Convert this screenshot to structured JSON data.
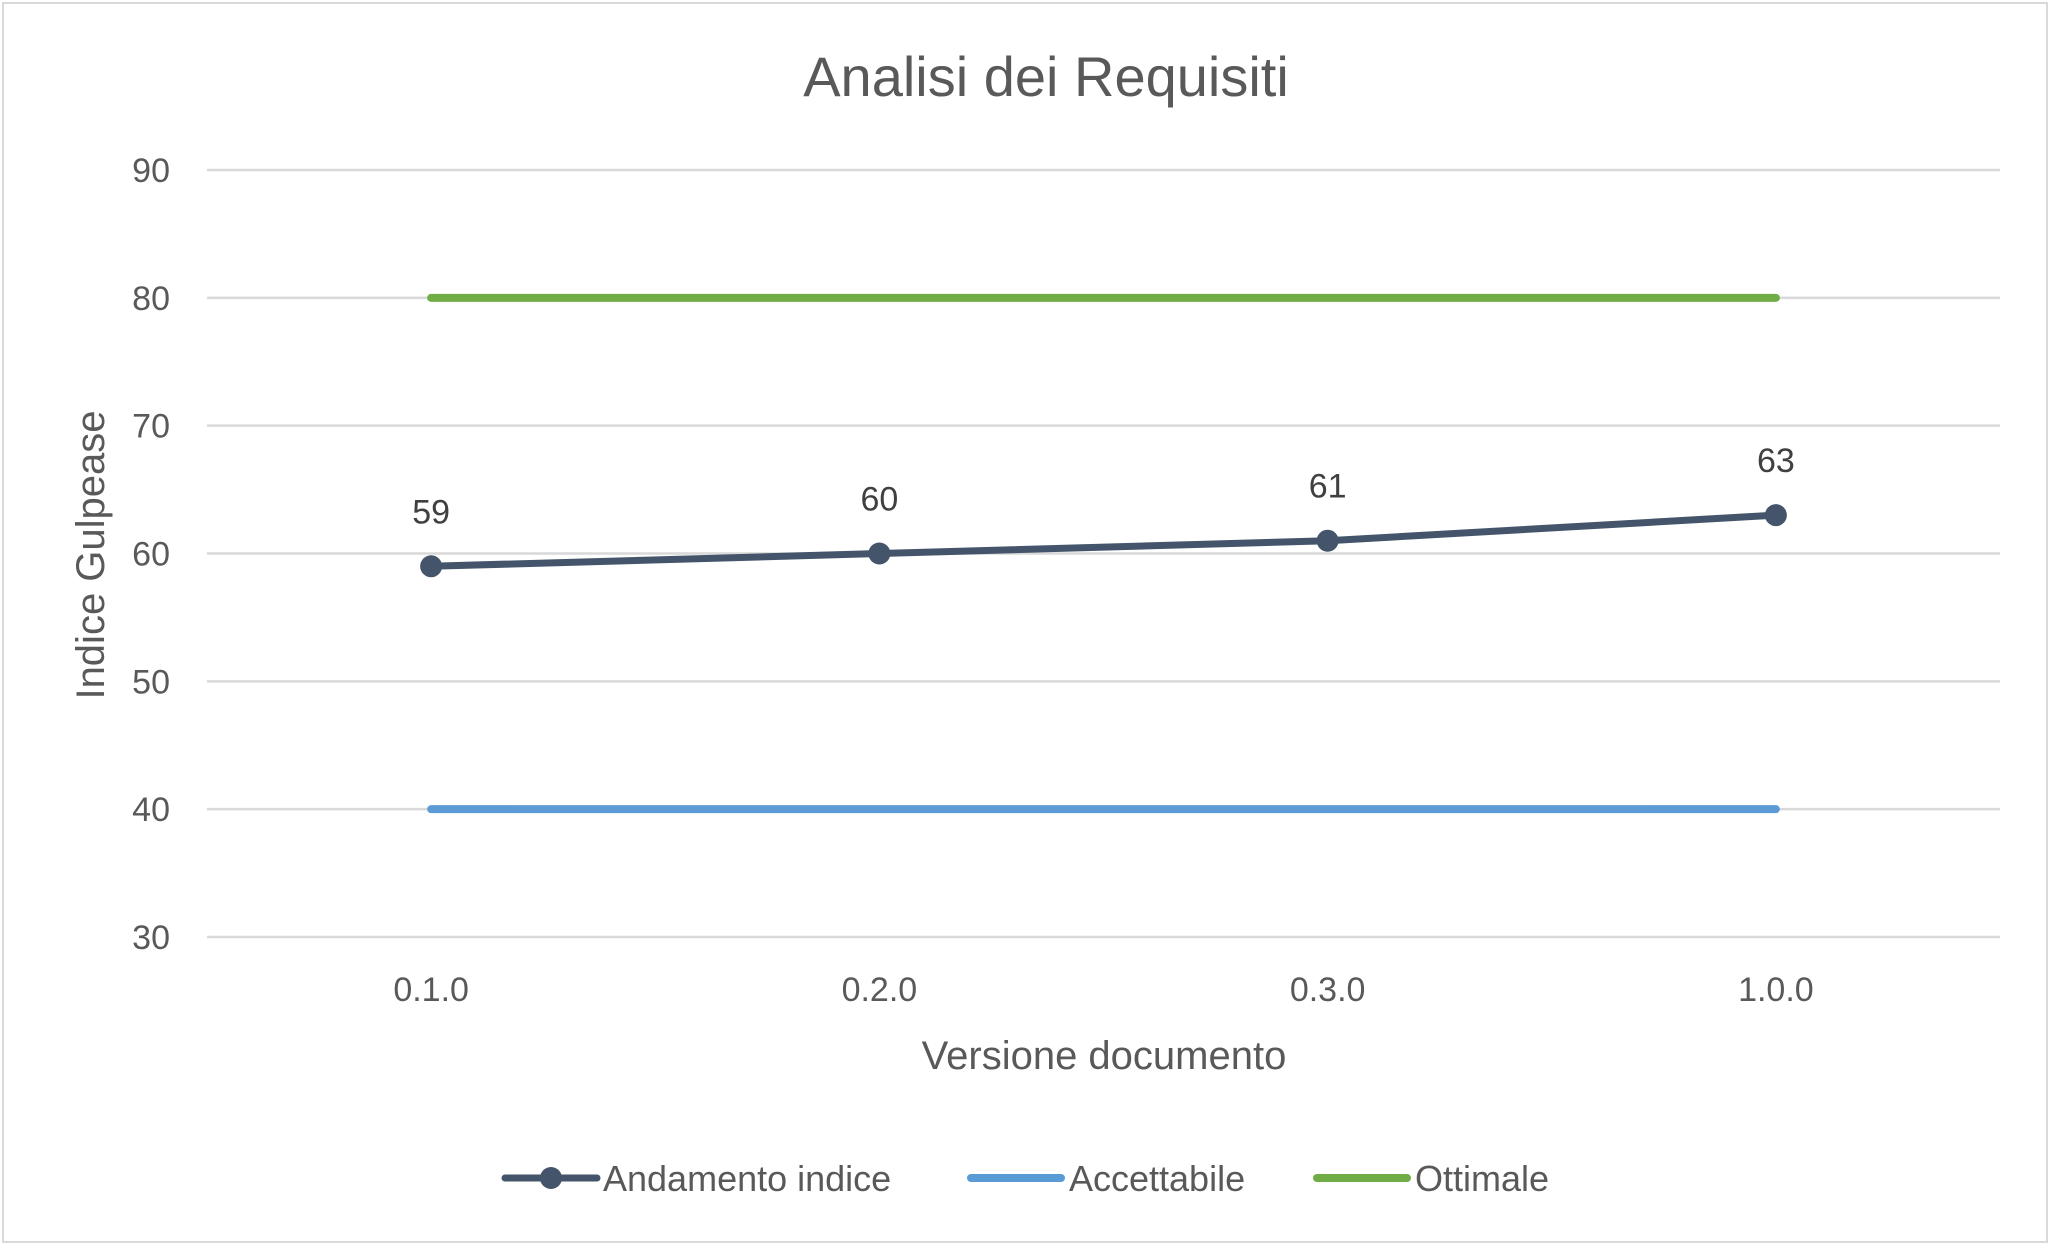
{
  "chart_data": {
    "type": "line",
    "title": "Analisi dei Requisiti",
    "xlabel": "Versione documento",
    "ylabel": "Indice Gulpease",
    "categories": [
      "0.1.0",
      "0.2.0",
      "0.3.0",
      "1.0.0"
    ],
    "ylim": [
      30,
      90
    ],
    "yticks": [
      30,
      40,
      50,
      60,
      70,
      80,
      90
    ],
    "grid": true,
    "legend_position": "bottom",
    "series": [
      {
        "name": "Andamento indice",
        "values": [
          59,
          60,
          61,
          63
        ],
        "color": "#44546a",
        "markers": true,
        "data_labels": true
      },
      {
        "name": "Accettabile",
        "values": [
          40,
          40,
          40,
          40
        ],
        "color": "#5b9bd5",
        "markers": false,
        "data_labels": false
      },
      {
        "name": "Ottimale",
        "values": [
          80,
          80,
          80,
          80
        ],
        "color": "#70ad47",
        "markers": false,
        "data_labels": false
      }
    ]
  }
}
